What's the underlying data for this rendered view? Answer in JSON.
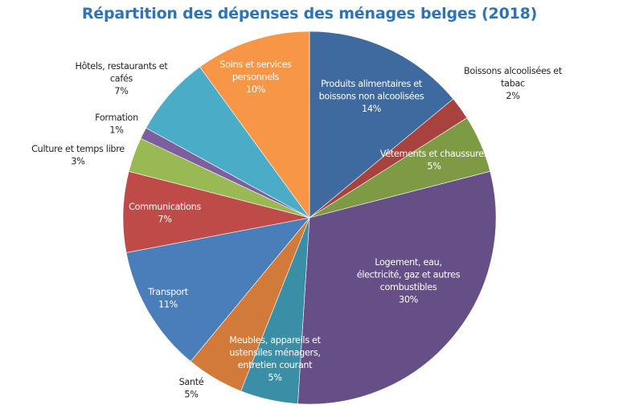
{
  "chart_data": {
    "type": "pie",
    "title": "Répartition des dépenses des ménages belges (2018)",
    "start_angle": "12 o'clock",
    "direction": "clockwise",
    "unit": "%",
    "slices": [
      {
        "name": "Produits alimentaires et boissons non alcoolisées",
        "lines": [
          "Produits alimentaires et",
          "boissons non alcoolisées"
        ],
        "value": 14,
        "label": "14%",
        "color": "#3f6aa0",
        "label_position": "inside"
      },
      {
        "name": "Boissons alcoolisées et tabac",
        "lines": [
          "Boissons alcoolisées et",
          "tabac"
        ],
        "value": 2,
        "label": "2%",
        "color": "#a8423f",
        "label_position": "outside"
      },
      {
        "name": "Vêtements et chaussures",
        "lines": [
          "Vêtements et chaussures"
        ],
        "value": 5,
        "label": "5%",
        "color": "#7e9a45",
        "label_position": "inside"
      },
      {
        "name": "Logement, eau, électricité, gaz et autres combustibles",
        "lines": [
          "Logement, eau,",
          "électricité, gaz et autres",
          "combustibles"
        ],
        "value": 30,
        "label": "30%",
        "color": "#664f86",
        "label_position": "inside"
      },
      {
        "name": "Meubles, appareils et ustensiles ménagers, entretien courant",
        "lines": [
          "Meubles, appareils et",
          "ustensiles ménagers,",
          "entretien courant"
        ],
        "value": 5,
        "label": "5%",
        "color": "#3a8ea5",
        "label_position": "inside"
      },
      {
        "name": "Santé",
        "lines": [
          "Santé"
        ],
        "value": 5,
        "label": "5%",
        "color": "#d17a39",
        "label_position": "outside"
      },
      {
        "name": "Transport",
        "lines": [
          "Transport"
        ],
        "value": 11,
        "label": "11%",
        "color": "#4a7ebb",
        "label_position": "inside"
      },
      {
        "name": "Communications",
        "lines": [
          "Communications"
        ],
        "value": 7,
        "label": "7%",
        "color": "#be4b48",
        "label_position": "inside"
      },
      {
        "name": "Culture et temps libre",
        "lines": [
          "Culture et temps libre"
        ],
        "value": 3,
        "label": "3%",
        "color": "#98b954",
        "label_position": "outside"
      },
      {
        "name": "Formation",
        "lines": [
          "Formation"
        ],
        "value": 1,
        "label": "1%",
        "color": "#7d5fa0",
        "label_position": "outside"
      },
      {
        "name": "Hôtels, restaurants et cafés",
        "lines": [
          "Hôtels, restaurants et",
          "cafés"
        ],
        "value": 7,
        "label": "7%",
        "color": "#4aacc6",
        "label_position": "outside"
      },
      {
        "name": "Soins et services personnels",
        "lines": [
          "Soins et services",
          "personnels"
        ],
        "value": 10,
        "label": "10%",
        "color": "#f79646",
        "label_position": "inside"
      }
    ],
    "legend": "none"
  }
}
